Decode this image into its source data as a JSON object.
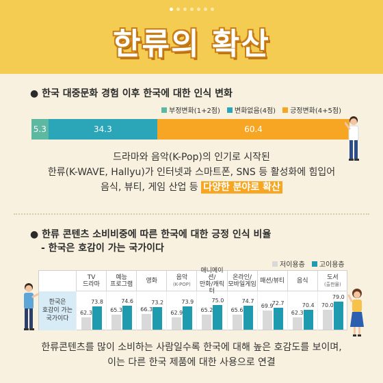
{
  "header": {
    "title": "한류의 확산",
    "page_dots": 7,
    "active_dot": 0
  },
  "section1": {
    "title": "● 한국 대중문화 경험 이후 한국에 대한 인식 변화",
    "legend": [
      {
        "label": "부정변화(1+2점)",
        "color": "#5cb8a0"
      },
      {
        "label": "변화없음(4점)",
        "color": "#2ba5b8"
      },
      {
        "label": "긍정변화(4+5점)",
        "color": "#f6a623"
      }
    ]
  },
  "section1_text": {
    "line1": "드라마와 음악(K-Pop)의 인기로 시작된",
    "line2": "한류(K-WAVE, Hallyu)가 인터넷과 스마트폰, SNS 등 활성화에 힘입어",
    "line3_pre": "음식, 뷰티, 게임 산업 등 ",
    "line3_hl": "다양한 분야로 확산"
  },
  "section2": {
    "title": "● 한류 콘텐츠 소비비중에 따른 한국에 대한 긍정 인식 비율",
    "subtitle": "- 한국은 호감이 가는 국가이다",
    "legend": [
      {
        "label": "저이용층",
        "color": "#d9d9d9"
      },
      {
        "label": "고이용층",
        "color": "#1f9bb0"
      }
    ],
    "row_label": [
      "한국은",
      "호감이 가는",
      "국가이다"
    ]
  },
  "footer": {
    "line1": "한류콘텐츠를 많이 소비하는 사람일수록 한국에 대해 높은 호감도를 보이며,",
    "line2": "이는 다른 한국 제품에 대한 사용으로 연결"
  },
  "chart_data": [
    {
      "type": "bar",
      "orientation": "horizontal-stacked",
      "title": "한국 대중문화 경험 이후 한국에 대한 인식 변화",
      "categories": [
        ""
      ],
      "series": [
        {
          "name": "부정변화(1+2점)",
          "values": [
            5.3
          ]
        },
        {
          "name": "변화없음(4점)",
          "values": [
            34.3
          ]
        },
        {
          "name": "긍정변화(4+5점)",
          "values": [
            60.4
          ]
        }
      ],
      "colors": [
        "#5cb8a0",
        "#2ba5b8",
        "#f6a623"
      ],
      "legend": "top-right"
    },
    {
      "type": "bar",
      "title": "한류 콘텐츠 소비비중에 따른 한국에 대한 긍정 인식 비율",
      "categories": [
        {
          "label": "TV\n드라마",
          "note": ""
        },
        {
          "label": "예능\n프로그램",
          "note": ""
        },
        {
          "label": "영화",
          "note": ""
        },
        {
          "label": "음악",
          "note": "(K-POP)"
        },
        {
          "label": "애니메이션/\n만화/캐릭터",
          "note": ""
        },
        {
          "label": "온라인/\n모바일게임",
          "note": ""
        },
        {
          "label": "패션/뷰티",
          "note": ""
        },
        {
          "label": "음식",
          "note": ""
        },
        {
          "label": "도서",
          "note": "(출판물)"
        }
      ],
      "series": [
        {
          "name": "저이용층",
          "values": [
            62.3,
            65.3,
            66.3,
            62.9,
            65.2,
            65.6,
            69.9,
            62.3,
            70.0
          ],
          "color": "#d9d9d9"
        },
        {
          "name": "고이용층",
          "values": [
            73.8,
            74.6,
            73.2,
            73.9,
            75.0,
            74.7,
            72.7,
            70.4,
            79.0
          ],
          "color": "#1f9bb0"
        }
      ],
      "legend": "top-right"
    }
  ]
}
